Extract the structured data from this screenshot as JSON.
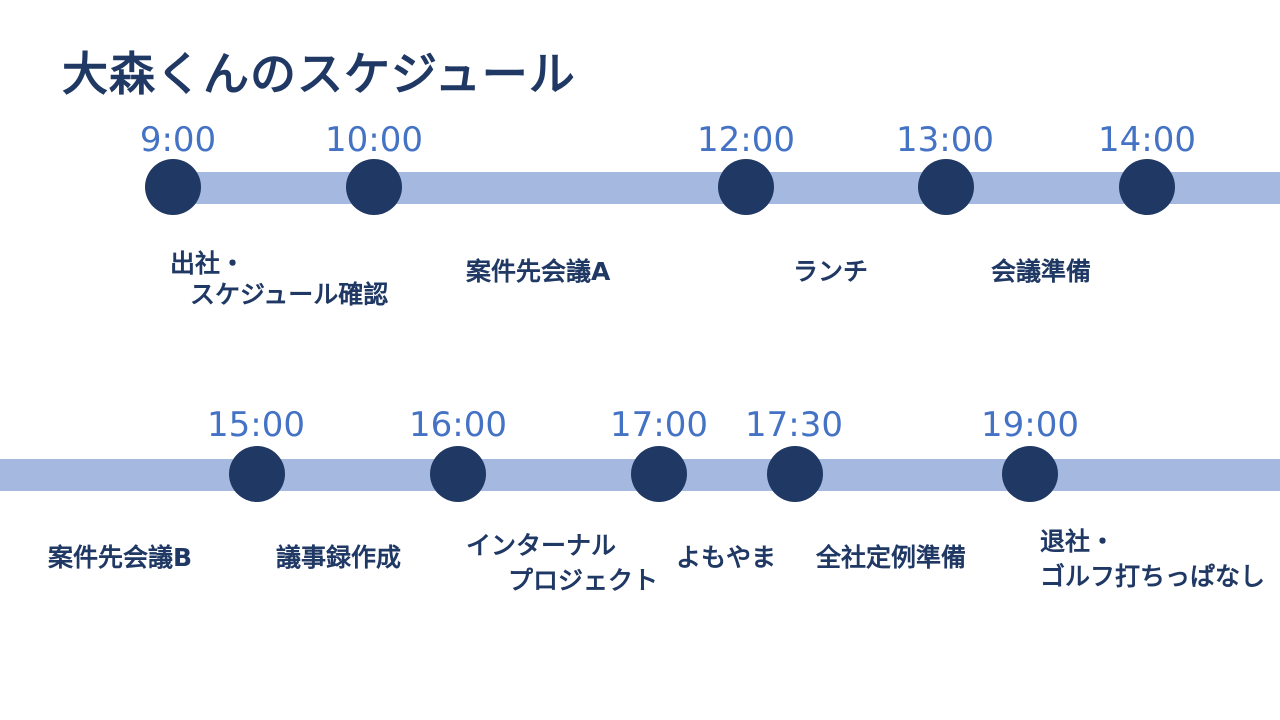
{
  "title": "大森くんのスケジュール",
  "colors": {
    "title": "#203864",
    "dot": "#203864",
    "track": "#a4b8e0",
    "time": "#4472c4",
    "event": "#203864"
  },
  "row1": {
    "times": [
      "9:00",
      "10:00",
      "12:00",
      "13:00",
      "14:00"
    ],
    "events": [
      {
        "line1": "出社・",
        "line2": "スケジュール確認"
      },
      {
        "line1": "案件先会議A"
      },
      {
        "line1": "ランチ"
      },
      {
        "line1": "会議準備"
      }
    ]
  },
  "row2": {
    "times": [
      "15:00",
      "16:00",
      "17:00",
      "17:30",
      "19:00"
    ],
    "events": [
      {
        "line1": "案件先会議B"
      },
      {
        "line1": "議事録作成"
      },
      {
        "line1": "インターナル",
        "line2": "プロジェクト"
      },
      {
        "line1": "よもやま"
      },
      {
        "line1": "全社定例準備"
      },
      {
        "line1": "退社・",
        "line2": "ゴルフ打ちっぱなし"
      }
    ]
  }
}
